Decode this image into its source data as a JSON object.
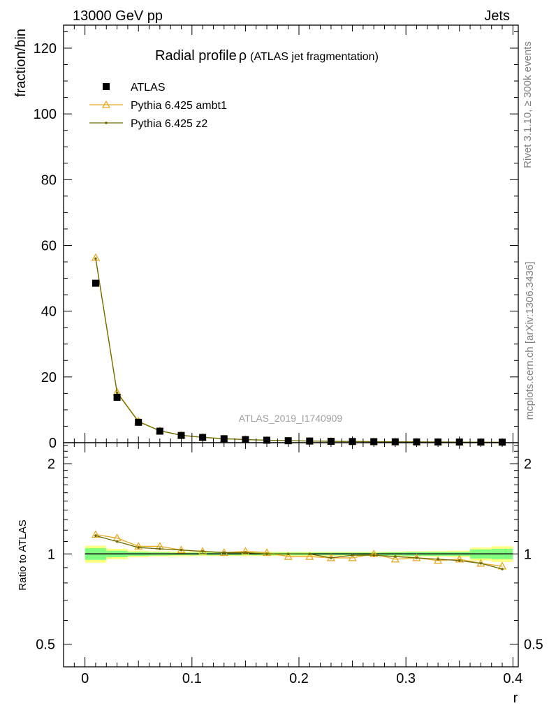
{
  "header": {
    "left": "13000 GeV pp",
    "right": "Jets"
  },
  "side_labels": {
    "top": "Rivet 3.1.10, ≥ 300k events",
    "bottom": "mcplots.cern.ch [arXiv:1306.3436]"
  },
  "chart_data": [
    {
      "type": "scatter",
      "title": "Radial profile",
      "title_symbol": "ρ",
      "subtitle": "(ATLAS jet fragmentation)",
      "watermark": "ATLAS_2019_I1740909",
      "ylabel": "fraction/bin",
      "ylim": [
        0,
        127
      ],
      "yticks": [
        0,
        20,
        40,
        60,
        80,
        100,
        120
      ],
      "xlim": [
        -0.02,
        0.405
      ],
      "legend_placement": "top-left",
      "x": [
        0.01,
        0.03,
        0.05,
        0.07,
        0.09,
        0.11,
        0.13,
        0.15,
        0.17,
        0.19,
        0.21,
        0.23,
        0.25,
        0.27,
        0.29,
        0.31,
        0.33,
        0.35,
        0.37,
        0.39
      ],
      "series": [
        {
          "name": "ATLAS",
          "color": "#000000",
          "marker": "square",
          "values": [
            48.5,
            13.8,
            6.2,
            3.5,
            2.2,
            1.6,
            1.2,
            0.95,
            0.75,
            0.6,
            0.5,
            0.42,
            0.36,
            0.31,
            0.27,
            0.24,
            0.21,
            0.19,
            0.17,
            0.15
          ]
        },
        {
          "name": "Pythia 6.425 ambt1",
          "color": "#e8a820",
          "marker": "triangle",
          "values": [
            56.3,
            15.4,
            6.5,
            3.65,
            2.27,
            1.63,
            1.21,
            0.96,
            0.76,
            0.59,
            0.49,
            0.41,
            0.35,
            0.31,
            0.26,
            0.23,
            0.2,
            0.18,
            0.16,
            0.14
          ]
        },
        {
          "name": "Pythia 6.425 z2",
          "color": "#6b6b00",
          "marker": "dot",
          "values": [
            56.0,
            15.2,
            6.4,
            3.6,
            2.25,
            1.62,
            1.21,
            0.95,
            0.75,
            0.6,
            0.5,
            0.41,
            0.36,
            0.31,
            0.26,
            0.23,
            0.2,
            0.18,
            0.16,
            0.13
          ]
        }
      ]
    },
    {
      "type": "line",
      "ylabel": "Ratio to ATLAS",
      "xlabel": "r",
      "log_y": true,
      "ylim": [
        0.42,
        2.35
      ],
      "yticks": [
        0.5,
        1,
        2
      ],
      "ytick_labels": [
        "0.5",
        "1",
        "2"
      ],
      "xlim": [
        -0.02,
        0.405
      ],
      "xticks": [
        0,
        0.1,
        0.2,
        0.3,
        0.4
      ],
      "xtick_labels": [
        "0",
        "0.1",
        "0.2",
        "0.3",
        "0.4"
      ],
      "x": [
        0.01,
        0.03,
        0.05,
        0.07,
        0.09,
        0.11,
        0.13,
        0.15,
        0.17,
        0.19,
        0.21,
        0.23,
        0.25,
        0.27,
        0.29,
        0.31,
        0.33,
        0.35,
        0.37,
        0.39
      ],
      "bin_edges": [
        0,
        0.02,
        0.04,
        0.06,
        0.08,
        0.1,
        0.12,
        0.14,
        0.16,
        0.18,
        0.2,
        0.22,
        0.24,
        0.26,
        0.28,
        0.3,
        0.32,
        0.34,
        0.36,
        0.38,
        0.4
      ],
      "band_inner": [
        0.045,
        0.025,
        0.015,
        0.012,
        0.01,
        0.01,
        0.01,
        0.01,
        0.01,
        0.01,
        0.01,
        0.01,
        0.01,
        0.01,
        0.012,
        0.015,
        0.015,
        0.015,
        0.035,
        0.04
      ],
      "band_outer": [
        0.065,
        0.04,
        0.025,
        0.02,
        0.018,
        0.016,
        0.016,
        0.016,
        0.016,
        0.016,
        0.016,
        0.016,
        0.016,
        0.016,
        0.018,
        0.02,
        0.022,
        0.025,
        0.05,
        0.06
      ],
      "band_inner_color": "#80ff80",
      "band_outer_color": "#ffff80",
      "reference_color": "#000000",
      "series": [
        {
          "name": "Pythia 6.425 ambt1",
          "color": "#e8a820",
          "marker": "triangle",
          "values": [
            1.16,
            1.13,
            1.06,
            1.06,
            1.03,
            1.02,
            1.01,
            1.02,
            1.01,
            0.98,
            0.98,
            0.97,
            0.97,
            1.0,
            0.96,
            0.97,
            0.95,
            0.96,
            0.93,
            0.91
          ]
        },
        {
          "name": "Pythia 6.425 z2",
          "color": "#6b6b00",
          "marker": "dot",
          "values": [
            1.15,
            1.1,
            1.05,
            1.04,
            1.03,
            1.02,
            1.01,
            1.01,
            1.0,
            1.0,
            1.0,
            0.97,
            0.99,
            0.99,
            0.98,
            0.97,
            0.96,
            0.95,
            0.93,
            0.89
          ]
        }
      ]
    }
  ]
}
